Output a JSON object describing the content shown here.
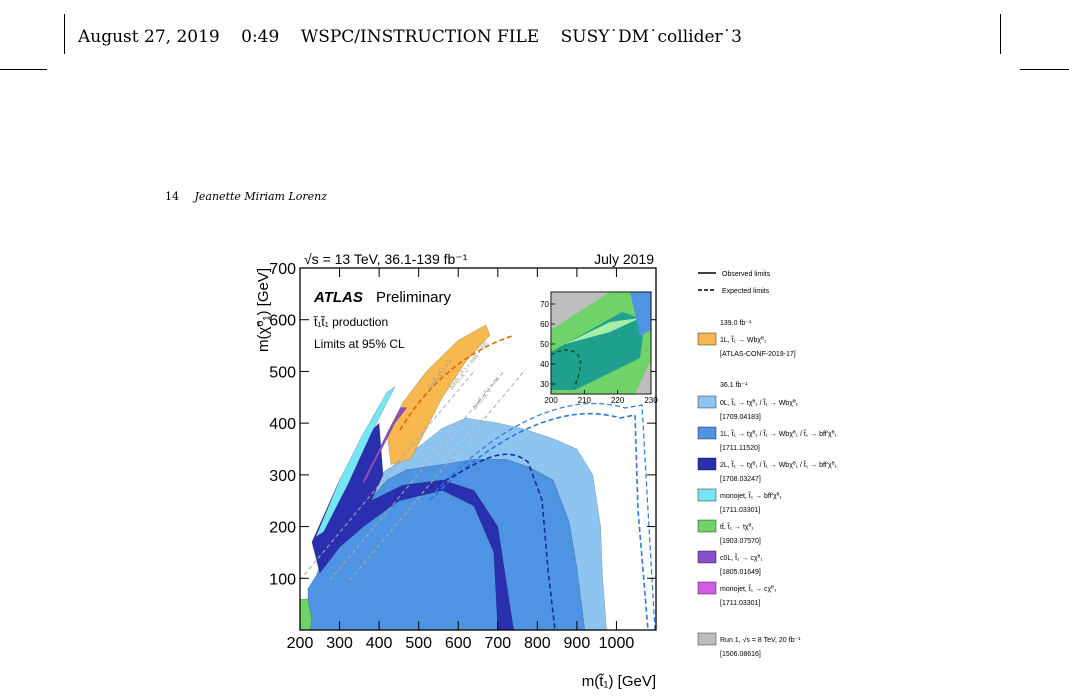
{
  "header": {
    "date": "August 27, 2019",
    "time": "0:49",
    "file_label": "WSPC/INSTRUCTION FILE",
    "filename": "SUSY˙DM˙collider˙3"
  },
  "running_head": {
    "page": "14",
    "author": "Jeanette Miriam Lorenz"
  },
  "figure": {
    "top_left": "√s = 13 TeV, 36.1-139 fb⁻¹",
    "top_right": "July 2019",
    "brand": "ATLAS",
    "brand_suffix": "Preliminary",
    "production": "t̃₁t̃₁ production",
    "limits": "Limits at 95% CL",
    "kin_labels": [
      "Δm(t̃₁,χ̃⁰₁) = 0",
      "Δm(t̃₁,χ̃⁰₁) = mW + mb",
      "Δm(t̃₁,χ̃⁰₁) = mt"
    ],
    "legend_top": {
      "observed": "Observed limits",
      "expected": "Expected limits"
    },
    "group_139": "139.0 fb⁻¹",
    "group_36": "36.1 fb⁻¹",
    "legend": [
      {
        "label": "1L, t̃₁ → Wbχ̃⁰₁",
        "ref": "[ATLAS-CONF-2019-17]",
        "color": "#f7b84f"
      },
      {
        "label": "0L, t̃₁ → tχ̃⁰₁ / t̃₁ → Wbχ̃⁰₁",
        "ref": "[1709.04183]",
        "color": "#8ec5f0"
      },
      {
        "label": "1L, t̃₁ → tχ̃⁰₁ / t̃₁ → Wbχ̃⁰₁ / t̃₁ → bff'χ̃⁰₁",
        "ref": "[1711.11520]",
        "color": "#4f93e3"
      },
      {
        "label": "2L, t̃₁ → tχ̃⁰₁ / t̃₁ → Wbχ̃⁰₁ / t̃₁ → bff'χ̃⁰₁",
        "ref": "[1708.03247]",
        "color": "#2a2fb0"
      },
      {
        "label": "monojet, t̃₁ → bff'χ̃⁰₁",
        "ref": "[1711.03301]",
        "color": "#76e6f5"
      },
      {
        "label": "tt̄, t̃₁ → tχ̃⁰₁",
        "ref": "[1903.07570]",
        "color": "#6fd36a"
      },
      {
        "label": "c0L, t̃₁ → cχ̃⁰₁",
        "ref": "[1805.01649]",
        "color": "#8a4fd0"
      },
      {
        "label": "monojet, t̃₁ → cχ̃⁰₁",
        "ref": "[1711.03301]",
        "color": "#d45ae8"
      }
    ],
    "run1": {
      "label": "Run 1, √s = 8 TeV, 20 fb⁻¹",
      "ref": "[1506.08616]",
      "color": "#bdbdbd"
    },
    "inset": {
      "x_ticks": [
        "200",
        "210",
        "220",
        "230"
      ],
      "y_ticks": [
        "30",
        "40",
        "50",
        "60",
        "70"
      ]
    }
  },
  "chart_data": {
    "type": "area",
    "title": "",
    "xlabel": "m(t̃₁) [GeV]",
    "ylabel": "m(χ̃⁰₁) [GeV]",
    "xlim": [
      200,
      1100
    ],
    "ylim": [
      0,
      700
    ],
    "x_ticks": [
      "200",
      "300",
      "400",
      "500",
      "600",
      "700",
      "800",
      "900",
      "1000"
    ],
    "y_ticks": [
      "100",
      "200",
      "300",
      "400",
      "500",
      "600",
      "700"
    ],
    "series": [
      {
        "name": "Run 1, √s = 8 TeV, 20 fb⁻¹",
        "color": "#bdbdbd",
        "points": [
          [
            210,
            0
          ],
          [
            210,
            40
          ],
          [
            300,
            160
          ],
          [
            400,
            240
          ],
          [
            500,
            270
          ],
          [
            560,
            290
          ],
          [
            620,
            290
          ],
          [
            680,
            240
          ],
          [
            700,
            150
          ],
          [
            710,
            0
          ]
        ]
      },
      {
        "name": "0L, t̃₁ → tχ̃⁰₁ / t̃₁ → Wbχ̃⁰₁",
        "color": "#8ec5f0",
        "points": [
          [
            210,
            30
          ],
          [
            280,
            200
          ],
          [
            400,
            300
          ],
          [
            460,
            330
          ],
          [
            560,
            390
          ],
          [
            620,
            410
          ],
          [
            700,
            400
          ],
          [
            760,
            390
          ],
          [
            840,
            370
          ],
          [
            900,
            350
          ],
          [
            940,
            300
          ],
          [
            960,
            200
          ],
          [
            965,
            100
          ],
          [
            975,
            0
          ],
          [
            210,
            0
          ]
        ]
      },
      {
        "name": "1L, t̃₁ → tχ̃⁰₁ / t̃₁ → Wbχ̃⁰₁ / t̃₁ → bff'χ̃⁰₁",
        "color": "#4f93e3",
        "points": [
          [
            220,
            80
          ],
          [
            320,
            200
          ],
          [
            420,
            290
          ],
          [
            470,
            310
          ],
          [
            560,
            320
          ],
          [
            640,
            330
          ],
          [
            720,
            330
          ],
          [
            780,
            315
          ],
          [
            840,
            290
          ],
          [
            880,
            210
          ],
          [
            900,
            120
          ],
          [
            920,
            0
          ],
          [
            220,
            0
          ]
        ]
      },
      {
        "name": "2L, t̃₁ → tχ̃⁰₁ / t̃₁ → Wbχ̃⁰₁ / t̃₁ → bff'χ̃⁰₁",
        "color": "#2a2fb0",
        "points": [
          [
            230,
            170
          ],
          [
            300,
            290
          ],
          [
            360,
            370
          ],
          [
            400,
            400
          ],
          [
            410,
            300
          ],
          [
            380,
            250
          ],
          [
            460,
            280
          ],
          [
            560,
            290
          ],
          [
            640,
            270
          ],
          [
            700,
            200
          ],
          [
            720,
            100
          ],
          [
            740,
            0
          ],
          [
            700,
            0
          ],
          [
            690,
            150
          ],
          [
            640,
            240
          ],
          [
            560,
            270
          ],
          [
            450,
            250
          ],
          [
            360,
            200
          ],
          [
            300,
            160
          ],
          [
            250,
            110
          ]
        ]
      },
      {
        "name": "1L, t̃₁ → Wbχ̃⁰₁",
        "color": "#f7b84f",
        "points": [
          [
            420,
            380
          ],
          [
            460,
            440
          ],
          [
            520,
            500
          ],
          [
            600,
            560
          ],
          [
            670,
            590
          ],
          [
            680,
            570
          ],
          [
            620,
            520
          ],
          [
            560,
            450
          ],
          [
            520,
            390
          ],
          [
            480,
            330
          ],
          [
            430,
            320
          ]
        ]
      },
      {
        "name": "monojet, t̃₁ → bff'χ̃⁰₁",
        "color": "#76e6f5",
        "points": [
          [
            240,
            180
          ],
          [
            300,
            290
          ],
          [
            360,
            380
          ],
          [
            420,
            460
          ],
          [
            440,
            470
          ],
          [
            380,
            380
          ],
          [
            320,
            280
          ],
          [
            260,
            190
          ]
        ]
      },
      {
        "name": "c0L, t̃₁ → cχ̃⁰₁",
        "color": "#8a4fd0",
        "points": [
          [
            360,
            280
          ],
          [
            400,
            340
          ],
          [
            440,
            400
          ],
          [
            470,
            430
          ],
          [
            455,
            430
          ],
          [
            420,
            380
          ],
          [
            380,
            320
          ],
          [
            360,
            290
          ]
        ]
      },
      {
        "name": "tt̄, t̃₁ → tχ̃⁰₁",
        "color": "#6fd36a",
        "points": [
          [
            200,
            0
          ],
          [
            200,
            60
          ],
          [
            220,
            60
          ],
          [
            230,
            20
          ],
          [
            225,
            0
          ]
        ]
      }
    ]
  }
}
